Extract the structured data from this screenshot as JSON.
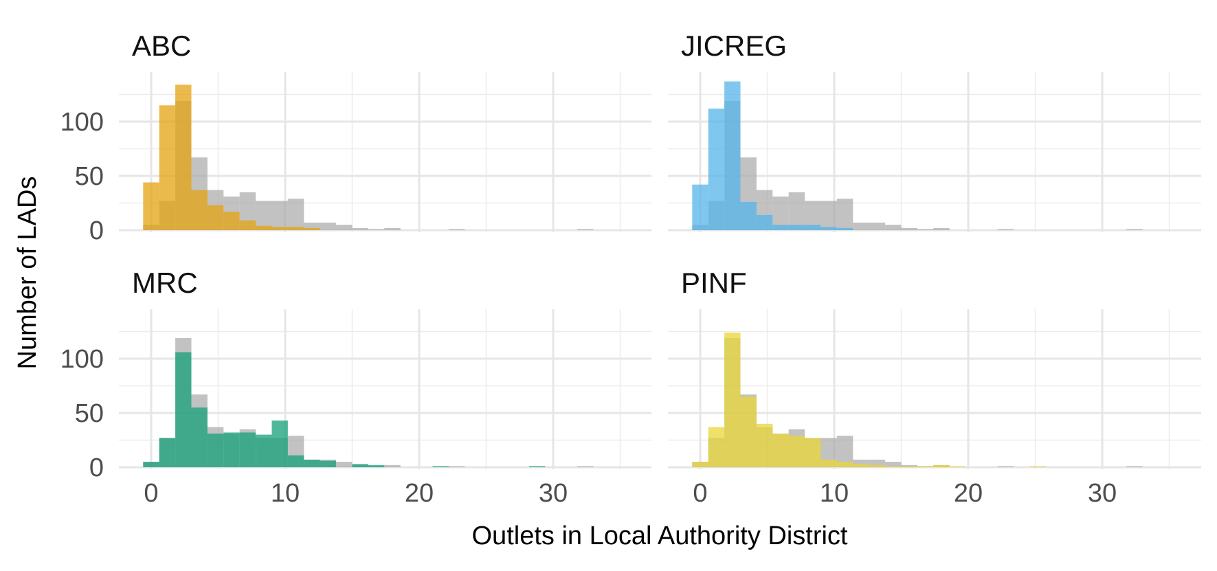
{
  "chart_data": {
    "type": "bar",
    "subtype": "faceted-histogram",
    "xlabel": "Outlets in Local Authority District",
    "ylabel": "Number of LADs",
    "xlim": [
      -2.5,
      37
    ],
    "ylim": [
      0,
      140
    ],
    "x_ticks": [
      0,
      10,
      20,
      30
    ],
    "y_ticks": [
      0,
      50,
      100
    ],
    "bin_width": 1.2,
    "bin_start": -0.6,
    "grid": true,
    "background_series": {
      "color": "#aaaaaa",
      "values": [
        5,
        27,
        119,
        67,
        37,
        31,
        35,
        27,
        27,
        29,
        7,
        7,
        5,
        2,
        1,
        2,
        0,
        0,
        0,
        1,
        0,
        0,
        0,
        0,
        0,
        0,
        0,
        1,
        0,
        0,
        0,
        0,
        0,
        0,
        0,
        0
      ]
    },
    "facets": [
      {
        "name": "ABC",
        "color": "#e4a312",
        "values": [
          44,
          115,
          134,
          37,
          23,
          17,
          9,
          4,
          3,
          3,
          2,
          0,
          0,
          0,
          0,
          0,
          0,
          0,
          0,
          0,
          0,
          0,
          0,
          0,
          0,
          0,
          0,
          0,
          0,
          0,
          0,
          0,
          0,
          0,
          0,
          0
        ]
      },
      {
        "name": "JICREG",
        "color": "#56b4e9",
        "values": [
          42,
          112,
          137,
          26,
          14,
          5,
          5,
          5,
          3,
          2,
          0,
          0,
          0,
          0,
          0,
          0,
          0,
          0,
          0,
          0,
          0,
          0,
          0,
          0,
          0,
          0,
          0,
          0,
          0,
          0,
          0,
          0,
          0,
          0,
          0,
          0
        ]
      },
      {
        "name": "MRC",
        "color": "#14a079",
        "values": [
          5,
          27,
          106,
          55,
          31,
          32,
          32,
          30,
          43,
          11,
          7,
          6,
          0,
          3,
          2,
          0,
          0,
          0,
          1,
          0,
          0,
          0,
          0,
          0,
          1,
          0,
          0,
          0,
          0,
          0,
          0,
          0,
          0,
          0,
          0,
          1
        ]
      },
      {
        "name": "PINF",
        "color": "#e8d636",
        "values": [
          5,
          37,
          124,
          65,
          40,
          31,
          29,
          27,
          7,
          5,
          3,
          2,
          1,
          1,
          1,
          2,
          1,
          0,
          0,
          0,
          0,
          1,
          0,
          0,
          0,
          0,
          0,
          0,
          0,
          0,
          0,
          0,
          0,
          0,
          0,
          0
        ]
      }
    ]
  }
}
